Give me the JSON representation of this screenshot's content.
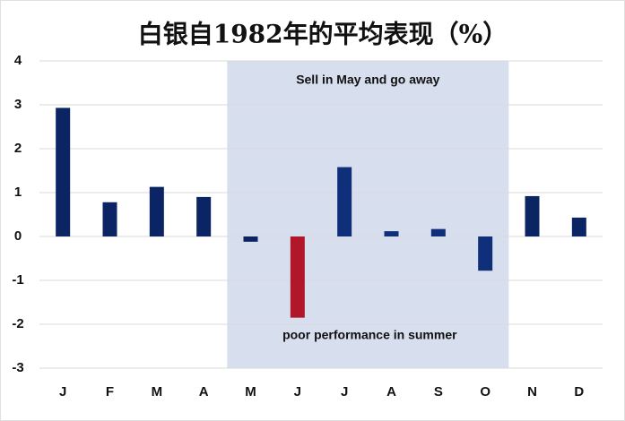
{
  "chart_data": {
    "type": "bar",
    "title": "白银自1982年的平均表现（%）",
    "categories": [
      "J",
      "F",
      "M",
      "A",
      "M",
      "J",
      "J",
      "A",
      "S",
      "O",
      "N",
      "D"
    ],
    "values": [
      2.93,
      0.78,
      1.13,
      0.9,
      -0.12,
      -1.85,
      1.58,
      0.12,
      0.17,
      -0.78,
      0.92,
      0.43
    ],
    "colors": [
      "#0b2463",
      "#0b2463",
      "#0b2463",
      "#0b2463",
      "#0b2463",
      "#b0182a",
      "#102f7a",
      "#102f7a",
      "#102f7a",
      "#102f7a",
      "#0b2463",
      "#0b2463"
    ],
    "ylim": [
      -3,
      4
    ],
    "yticks": [
      -3,
      -2,
      -1,
      0,
      1,
      2,
      3,
      4
    ],
    "grid": true,
    "shaded_categories": [
      4,
      9
    ],
    "shade_color": "#d7deee",
    "annotations": [
      "Sell in May and go away",
      "poor performance in summer"
    ]
  }
}
